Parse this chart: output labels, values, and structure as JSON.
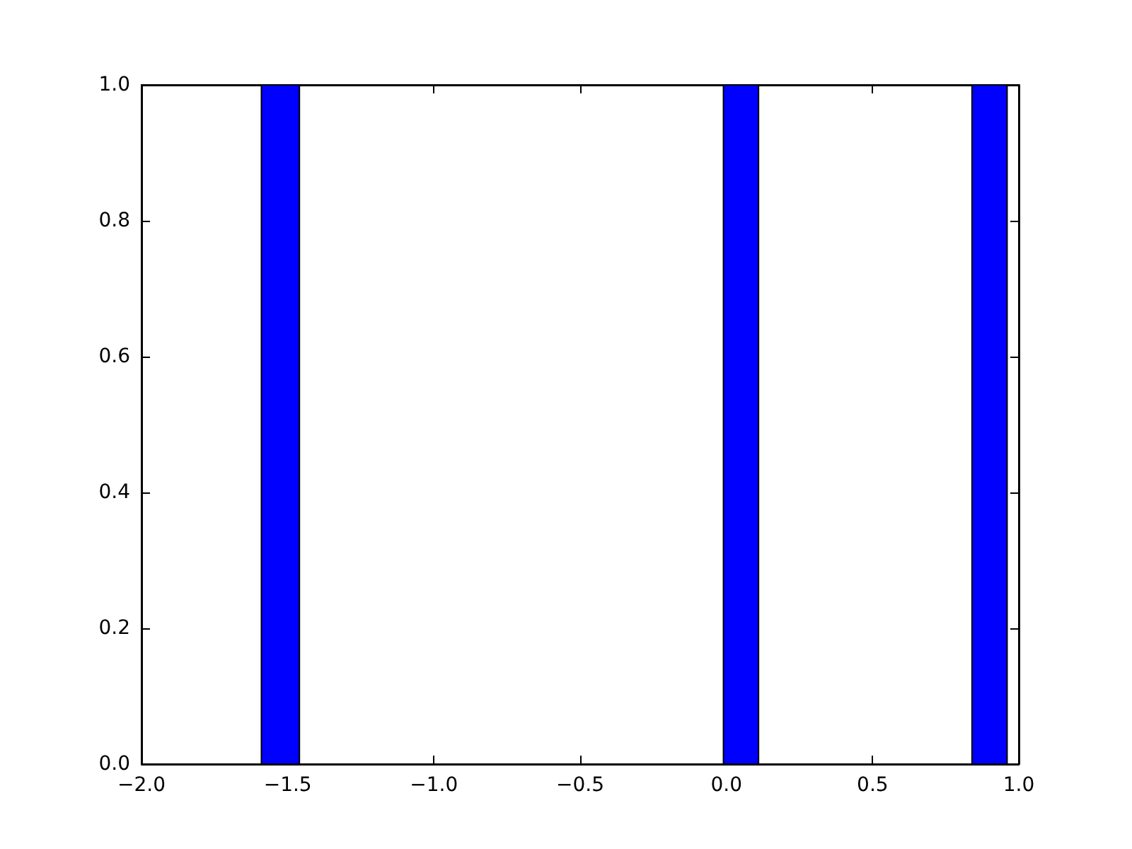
{
  "chart_data": {
    "type": "histogram",
    "color": "#0000ff",
    "bins": [
      -1.59,
      -1.46,
      -0.01,
      0.11,
      0.84,
      0.96
    ],
    "values": [
      1,
      0,
      1,
      0,
      1
    ],
    "xlim": [
      -2,
      1
    ],
    "xticks": [
      {
        "value": -2,
        "label": "−2.0"
      },
      {
        "value": -1.5,
        "label": "−1.5"
      },
      {
        "value": -1,
        "label": "−1.0"
      },
      {
        "value": -0.5,
        "label": "−0.5"
      },
      {
        "value": 0,
        "label": "0.0"
      },
      {
        "value": 0.5,
        "label": "0.5"
      },
      {
        "value": 1,
        "label": "1.0"
      }
    ],
    "ylim": [
      0,
      1
    ],
    "yticks": [
      {
        "value": 0,
        "label": "0.0"
      },
      {
        "value": 0.2,
        "label": "0.2"
      },
      {
        "value": 0.4,
        "label": "0.4"
      },
      {
        "value": 0.6,
        "label": "0.6"
      },
      {
        "value": 0.8,
        "label": "0.8"
      },
      {
        "value": 1,
        "label": "1.0"
      }
    ],
    "grid": false
  }
}
